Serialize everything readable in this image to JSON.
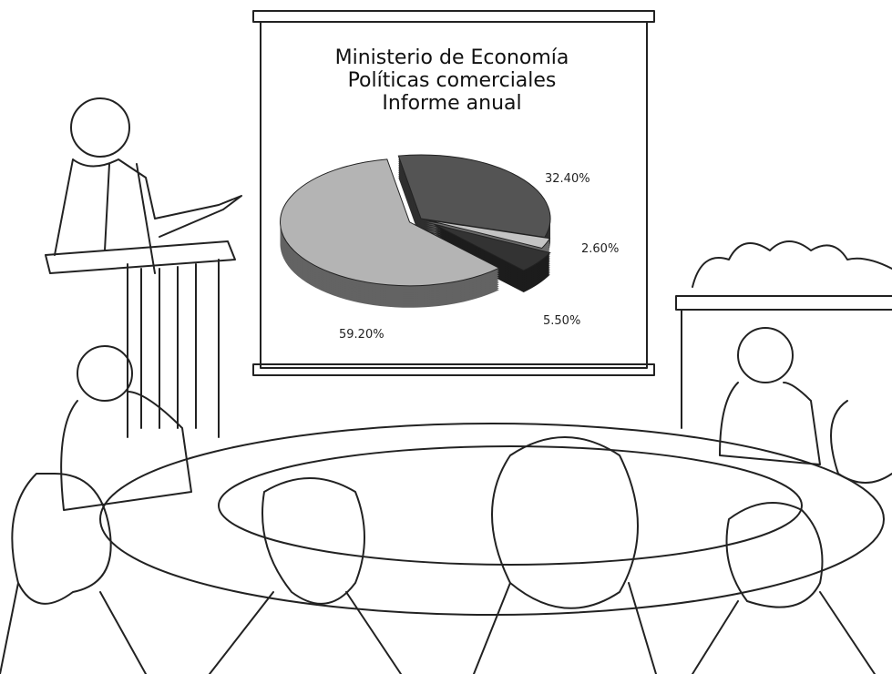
{
  "chart_data": {
    "type": "pie",
    "title": [
      "Ministerio de Economía",
      "Políticas comerciales",
      "Informe anual"
    ],
    "series": [
      {
        "values": [
          32.4,
          2.6,
          5.5,
          59.2
        ],
        "value_labels": [
          "32.40%",
          "2.60%",
          "5.50%",
          "59.20%"
        ],
        "colors": [
          "#545454",
          "#c4c4c4",
          "#333333",
          "#b4b4b4"
        ]
      }
    ]
  }
}
